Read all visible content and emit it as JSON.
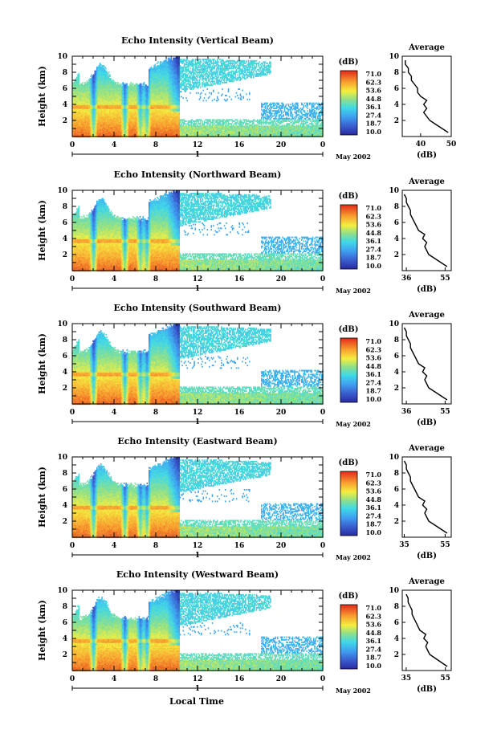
{
  "figure": {
    "xlabel_bottom": "Local Time",
    "month_label": "May 2002",
    "day_label": "1",
    "colorbar_unit": "(dB)",
    "colorbar_ticks": [
      "71.0",
      "62.3",
      "53.6",
      "44.8",
      "36.1",
      "27.4",
      "18.7",
      "10.0"
    ],
    "avg_title": "Average",
    "avg_xlabel": "(dB)"
  },
  "chart_data": [
    {
      "type": "heatmap",
      "title": "Echo Intensity (Vertical Beam)",
      "ylabel": "Height (km)",
      "xlim": [
        0,
        24
      ],
      "ylim": [
        0,
        10
      ],
      "x_ticks": [
        "0",
        "4",
        "8",
        "12",
        "16",
        "20",
        "0"
      ],
      "y_ticks": [
        "2",
        "4",
        "6",
        "8",
        "10"
      ],
      "colorbar_range": [
        10.0,
        71.0
      ],
      "average_profile": {
        "xlim": [
          34,
          50
        ],
        "x_ticks": [
          "40",
          "50"
        ],
        "y_ticks": [
          "2",
          "4",
          "6",
          "8",
          "10"
        ],
        "height_km": [
          0.5,
          1.0,
          1.5,
          2.0,
          2.5,
          3.0,
          3.5,
          4.0,
          4.5,
          5.0,
          5.5,
          6.0,
          6.5,
          7.0,
          7.5,
          8.0,
          8.5,
          9.0,
          9.5
        ],
        "values_db": [
          49,
          47,
          45,
          43,
          42,
          41,
          42,
          41,
          42,
          40,
          39,
          39,
          38,
          37,
          37,
          36,
          36,
          35,
          35
        ]
      }
    },
    {
      "type": "heatmap",
      "title": "Echo Intensity (Northward Beam)",
      "ylabel": "Height (km)",
      "xlim": [
        0,
        24
      ],
      "ylim": [
        0,
        10
      ],
      "x_ticks": [
        "0",
        "4",
        "8",
        "12",
        "16",
        "20",
        "0"
      ],
      "y_ticks": [
        "2",
        "4",
        "6",
        "8",
        "10"
      ],
      "colorbar_range": [
        10.0,
        71.0
      ],
      "average_profile": {
        "xlim": [
          34,
          58
        ],
        "x_ticks": [
          "36",
          "55"
        ],
        "y_ticks": [
          "2",
          "4",
          "6",
          "8",
          "10"
        ],
        "height_km": [
          0.5,
          1.0,
          1.5,
          2.0,
          2.5,
          3.0,
          3.5,
          4.0,
          4.5,
          5.0,
          5.5,
          6.0,
          6.5,
          7.0,
          7.5,
          8.0,
          8.5,
          9.0,
          9.5
        ],
        "values_db": [
          56,
          53,
          50,
          47,
          46,
          45,
          46,
          44,
          45,
          42,
          41,
          40,
          39,
          38,
          38,
          37,
          36,
          36,
          35
        ]
      }
    },
    {
      "type": "heatmap",
      "title": "Echo Intensity (Southward Beam)",
      "ylabel": "Height (km)",
      "xlim": [
        0,
        24
      ],
      "ylim": [
        0,
        10
      ],
      "x_ticks": [
        "0",
        "4",
        "8",
        "12",
        "16",
        "20",
        "0"
      ],
      "y_ticks": [
        "2",
        "4",
        "6",
        "8",
        "10"
      ],
      "colorbar_range": [
        10.0,
        71.0
      ],
      "average_profile": {
        "xlim": [
          34,
          58
        ],
        "x_ticks": [
          "36",
          "55"
        ],
        "y_ticks": [
          "2",
          "4",
          "6",
          "8",
          "10"
        ],
        "height_km": [
          0.5,
          1.0,
          1.5,
          2.0,
          2.5,
          3.0,
          3.5,
          4.0,
          4.5,
          5.0,
          5.5,
          6.0,
          6.5,
          7.0,
          7.5,
          8.0,
          8.5,
          9.0,
          9.5
        ],
        "values_db": [
          56,
          53,
          50,
          47,
          46,
          45,
          46,
          44,
          45,
          42,
          41,
          40,
          39,
          38,
          38,
          37,
          36,
          36,
          35
        ]
      }
    },
    {
      "type": "heatmap",
      "title": "Echo Intensity (Eastward Beam)",
      "ylabel": "Height (km)",
      "xlim": [
        0,
        24
      ],
      "ylim": [
        0,
        10
      ],
      "x_ticks": [
        "0",
        "4",
        "8",
        "12",
        "16",
        "20",
        "0"
      ],
      "y_ticks": [
        "2",
        "4",
        "6",
        "8",
        "10"
      ],
      "colorbar_range": [
        10.0,
        71.0
      ],
      "average_profile": {
        "xlim": [
          34,
          58
        ],
        "x_ticks": [
          "35",
          "55"
        ],
        "y_ticks": [
          "2",
          "4",
          "6",
          "8",
          "10"
        ],
        "height_km": [
          0.5,
          1.0,
          1.5,
          2.0,
          2.5,
          3.0,
          3.5,
          4.0,
          4.5,
          5.0,
          5.5,
          6.0,
          6.5,
          7.0,
          7.5,
          8.0,
          8.5,
          9.0,
          9.5
        ],
        "values_db": [
          56,
          53,
          50,
          47,
          46,
          45,
          46,
          44,
          45,
          42,
          41,
          40,
          39,
          38,
          38,
          37,
          36,
          36,
          35
        ]
      }
    },
    {
      "type": "heatmap",
      "title": "Echo Intensity (Westward Beam)",
      "ylabel": "Height (km)",
      "xlim": [
        0,
        24
      ],
      "ylim": [
        0,
        10
      ],
      "x_ticks": [
        "0",
        "4",
        "8",
        "12",
        "16",
        "20",
        "0"
      ],
      "y_ticks": [
        "2",
        "4",
        "6",
        "8",
        "10"
      ],
      "colorbar_range": [
        10.0,
        71.0
      ],
      "average_profile": {
        "xlim": [
          33,
          58
        ],
        "x_ticks": [
          "35",
          "55"
        ],
        "y_ticks": [
          "2",
          "4",
          "6",
          "8",
          "10"
        ],
        "height_km": [
          0.5,
          1.0,
          1.5,
          2.0,
          2.5,
          3.0,
          3.5,
          4.0,
          4.5,
          5.0,
          5.5,
          6.0,
          6.5,
          7.0,
          7.5,
          8.0,
          8.5,
          9.0,
          9.5
        ],
        "values_db": [
          56,
          53,
          50,
          47,
          46,
          45,
          46,
          44,
          45,
          42,
          41,
          40,
          39,
          38,
          38,
          37,
          36,
          36,
          35
        ]
      }
    }
  ]
}
